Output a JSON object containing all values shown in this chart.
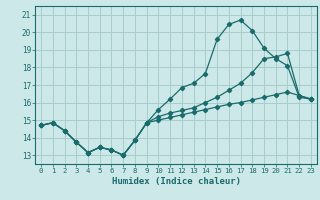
{
  "title": "",
  "xlabel": "Humidex (Indice chaleur)",
  "ylabel": "",
  "bg_color": "#cde8e8",
  "line_color": "#1a6b6b",
  "grid_color": "#a8cccc",
  "xlim": [
    -0.5,
    23.5
  ],
  "ylim": [
    12.5,
    21.5
  ],
  "xticks": [
    0,
    1,
    2,
    3,
    4,
    5,
    6,
    7,
    8,
    9,
    10,
    11,
    12,
    13,
    14,
    15,
    16,
    17,
    18,
    19,
    20,
    21,
    22,
    23
  ],
  "yticks": [
    13,
    14,
    15,
    16,
    17,
    18,
    19,
    20,
    21
  ],
  "line1_x": [
    0,
    1,
    2,
    3,
    4,
    5,
    6,
    7,
    8,
    9,
    10,
    11,
    12,
    13,
    14,
    15,
    16,
    17,
    18,
    19,
    20,
    21,
    22,
    23
  ],
  "line1_y": [
    14.7,
    14.85,
    14.4,
    13.75,
    13.15,
    13.45,
    13.3,
    13.0,
    13.85,
    14.85,
    15.6,
    16.2,
    16.85,
    17.1,
    17.65,
    19.6,
    20.45,
    20.7,
    20.1,
    19.1,
    18.5,
    18.1,
    16.3,
    16.2
  ],
  "line2_x": [
    0,
    1,
    2,
    3,
    4,
    5,
    6,
    7,
    8,
    9,
    10,
    11,
    12,
    13,
    14,
    15,
    16,
    17,
    18,
    19,
    20,
    21,
    22,
    23
  ],
  "line2_y": [
    14.7,
    14.85,
    14.4,
    13.75,
    13.15,
    13.45,
    13.3,
    13.0,
    13.85,
    14.85,
    15.2,
    15.4,
    15.55,
    15.7,
    16.0,
    16.3,
    16.7,
    17.1,
    17.7,
    18.5,
    18.6,
    18.8,
    16.4,
    16.2
  ],
  "line3_x": [
    0,
    1,
    2,
    3,
    4,
    5,
    6,
    7,
    8,
    9,
    10,
    11,
    12,
    13,
    14,
    15,
    16,
    17,
    18,
    19,
    20,
    21,
    22,
    23
  ],
  "line3_y": [
    14.7,
    14.85,
    14.4,
    13.75,
    13.15,
    13.45,
    13.3,
    13.0,
    13.85,
    14.85,
    15.0,
    15.15,
    15.3,
    15.45,
    15.6,
    15.75,
    15.9,
    16.0,
    16.15,
    16.3,
    16.45,
    16.6,
    16.4,
    16.2
  ]
}
